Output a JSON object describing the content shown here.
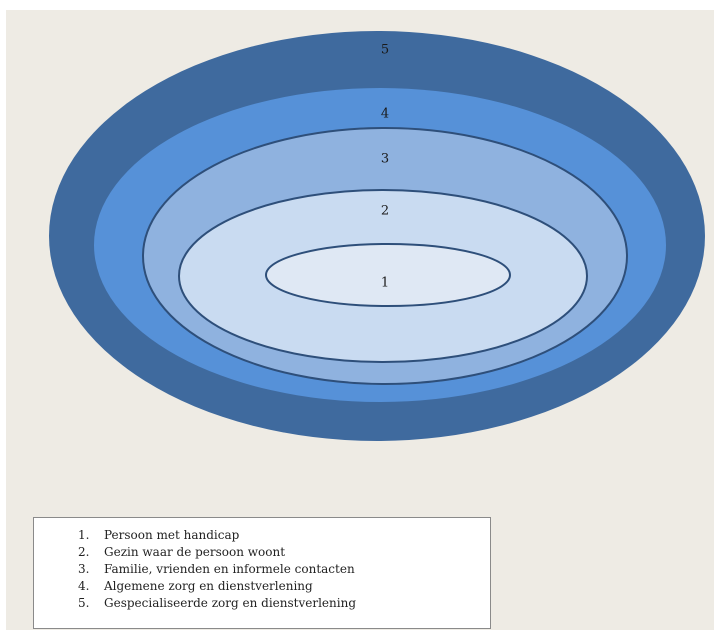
{
  "colors": {
    "background": "#eeebe4",
    "ring5": "#3f6a9e",
    "ring4": "#5691d8",
    "ring3": "#8fb2df",
    "ring2": "#c9dbf1",
    "ring1": "#dfe8f4",
    "outline": "#2e4f7a"
  },
  "rings": [
    {
      "id": "5",
      "label": "5"
    },
    {
      "id": "4",
      "label": "4"
    },
    {
      "id": "3",
      "label": "3"
    },
    {
      "id": "2",
      "label": "2"
    },
    {
      "id": "1",
      "label": "1"
    }
  ],
  "legend": {
    "items": [
      {
        "num": "1.",
        "text": "Persoon met handicap"
      },
      {
        "num": "2.",
        "text": "Gezin waar de persoon woont"
      },
      {
        "num": "3.",
        "text": "Familie, vrienden en informele contacten"
      },
      {
        "num": "4.",
        "text": "Algemene zorg en dienstverlening"
      },
      {
        "num": "5.",
        "text": "Gespecialiseerde zorg en dienstverlening"
      }
    ]
  }
}
